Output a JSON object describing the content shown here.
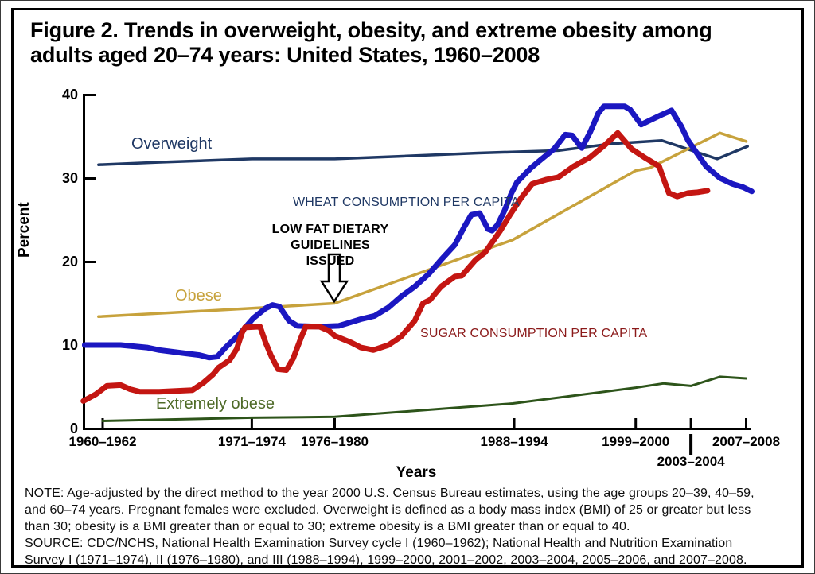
{
  "figure": {
    "title_line1": "Figure 2. Trends in overweight, obesity, and extreme obesity among",
    "title_line2": "adults aged 20–74 years: United States, 1960–2008"
  },
  "chart_data": {
    "type": "line",
    "title": "Figure 2. Trends in overweight, obesity, and extreme obesity among adults aged 20–74 years: United States, 1960–2008",
    "xlabel": "Years",
    "ylabel": "Percent",
    "ylim": [
      0,
      40
    ],
    "grid": false,
    "legend_position": "labels-on-lines",
    "y_ticks": [
      0,
      10,
      20,
      30,
      40
    ],
    "x_ticks": [
      {
        "label": "1960–1962",
        "year": 1961.0,
        "row": 1
      },
      {
        "label": "1971–1974",
        "year": 1971.8,
        "row": 1
      },
      {
        "label": "1976–1980",
        "year": 1977.8,
        "row": 1
      },
      {
        "label": "1988–1994",
        "year": 1990.8,
        "row": 1
      },
      {
        "label": "1999–2000",
        "year": 1999.6,
        "row": 1
      },
      {
        "label": "2003–2004",
        "year": 2003.6,
        "row": 2
      },
      {
        "label": "2007–2008",
        "year": 2007.6,
        "row": 1
      }
    ],
    "series": [
      {
        "name": "Overweight",
        "color": "#1f3864",
        "thick": false,
        "points": [
          [
            1960.7,
            31.6
          ],
          [
            1965.0,
            31.9
          ],
          [
            1971.8,
            32.3
          ],
          [
            1977.8,
            32.3
          ],
          [
            1982.4,
            32.6
          ],
          [
            1988.2,
            33.0
          ],
          [
            1994.0,
            33.3
          ],
          [
            1997.8,
            34.1
          ],
          [
            2001.5,
            34.5
          ],
          [
            2005.5,
            32.3
          ],
          [
            2007.7,
            33.8
          ]
        ]
      },
      {
        "name": "Obese",
        "color": "#c7a23c",
        "thick": false,
        "points": [
          [
            1960.7,
            13.4
          ],
          [
            1971.8,
            14.4
          ],
          [
            1977.8,
            15.0
          ],
          [
            1990.7,
            22.6
          ],
          [
            1999.6,
            30.9
          ],
          [
            2000.6,
            31.2
          ],
          [
            2005.7,
            35.4
          ],
          [
            2007.6,
            34.4
          ]
        ]
      },
      {
        "name": "Extremely obese",
        "color": "#2d541a",
        "thick": false,
        "points": [
          [
            1961.0,
            0.9
          ],
          [
            1971.8,
            1.3
          ],
          [
            1977.8,
            1.4
          ],
          [
            1990.7,
            3.0
          ],
          [
            1999.6,
            4.9
          ],
          [
            2001.6,
            5.4
          ],
          [
            2003.6,
            5.1
          ],
          [
            2005.7,
            6.2
          ],
          [
            2007.6,
            6.0
          ]
        ]
      },
      {
        "name": "Wheat consumption per capita",
        "color": "#1b17c1",
        "thick": true,
        "points": [
          [
            1959.7,
            10.0
          ],
          [
            1962.3,
            10.0
          ],
          [
            1964.2,
            9.7
          ],
          [
            1965.1,
            9.4
          ],
          [
            1967.0,
            9.0
          ],
          [
            1968.0,
            8.8
          ],
          [
            1968.7,
            8.5
          ],
          [
            1969.3,
            8.6
          ],
          [
            1969.9,
            9.7
          ],
          [
            1970.9,
            11.3
          ],
          [
            1971.9,
            13.2
          ],
          [
            1972.8,
            14.4
          ],
          [
            1973.3,
            14.8
          ],
          [
            1973.8,
            14.6
          ],
          [
            1974.5,
            12.9
          ],
          [
            1975.1,
            12.3
          ],
          [
            1976.7,
            12.2
          ],
          [
            1978.1,
            12.3
          ],
          [
            1979.7,
            13.1
          ],
          [
            1980.7,
            13.5
          ],
          [
            1981.7,
            14.5
          ],
          [
            1982.6,
            15.8
          ],
          [
            1983.6,
            17.0
          ],
          [
            1984.6,
            18.5
          ],
          [
            1985.5,
            20.2
          ],
          [
            1986.5,
            22.0
          ],
          [
            1987.2,
            24.2
          ],
          [
            1987.7,
            25.6
          ],
          [
            1988.3,
            25.8
          ],
          [
            1988.9,
            23.9
          ],
          [
            1989.2,
            23.7
          ],
          [
            1989.6,
            24.4
          ],
          [
            1990.1,
            26.1
          ],
          [
            1990.6,
            28.2
          ],
          [
            1991.0,
            29.5
          ],
          [
            1992.0,
            31.2
          ],
          [
            1992.8,
            32.3
          ],
          [
            1993.7,
            33.5
          ],
          [
            1994.5,
            35.2
          ],
          [
            1995.0,
            35.1
          ],
          [
            1995.7,
            33.6
          ],
          [
            1996.3,
            35.5
          ],
          [
            1996.9,
            37.8
          ],
          [
            1997.3,
            38.6
          ],
          [
            1998.8,
            38.6
          ],
          [
            1999.2,
            38.2
          ],
          [
            2000.0,
            36.4
          ],
          [
            2000.6,
            36.9
          ],
          [
            2001.5,
            37.6
          ],
          [
            2002.2,
            38.1
          ],
          [
            2002.9,
            36.2
          ],
          [
            2003.4,
            34.5
          ],
          [
            2003.9,
            33.3
          ],
          [
            2004.7,
            31.4
          ],
          [
            2005.7,
            30.0
          ],
          [
            2006.6,
            29.3
          ],
          [
            2007.4,
            28.9
          ],
          [
            2008.0,
            28.4
          ]
        ]
      },
      {
        "name": "Sugar consumption per capita",
        "color": "#c41612",
        "thick": true,
        "points": [
          [
            1959.6,
            3.3
          ],
          [
            1960.5,
            4.1
          ],
          [
            1961.3,
            5.1
          ],
          [
            1962.3,
            5.2
          ],
          [
            1963.0,
            4.7
          ],
          [
            1963.7,
            4.4
          ],
          [
            1965.1,
            4.4
          ],
          [
            1967.5,
            4.6
          ],
          [
            1968.3,
            5.5
          ],
          [
            1969.0,
            6.5
          ],
          [
            1969.4,
            7.3
          ],
          [
            1970.2,
            8.2
          ],
          [
            1970.7,
            9.5
          ],
          [
            1971.1,
            11.5
          ],
          [
            1971.3,
            12.1
          ],
          [
            1972.4,
            12.2
          ],
          [
            1972.8,
            10.3
          ],
          [
            1973.2,
            8.7
          ],
          [
            1973.7,
            7.1
          ],
          [
            1974.3,
            7.0
          ],
          [
            1974.8,
            8.4
          ],
          [
            1975.4,
            11.0
          ],
          [
            1975.7,
            12.2
          ],
          [
            1976.7,
            12.2
          ],
          [
            1977.4,
            11.7
          ],
          [
            1977.8,
            11.1
          ],
          [
            1979.0,
            10.3
          ],
          [
            1979.7,
            9.7
          ],
          [
            1980.6,
            9.4
          ],
          [
            1981.7,
            10.0
          ],
          [
            1982.6,
            11.0
          ],
          [
            1983.6,
            12.9
          ],
          [
            1984.2,
            15.0
          ],
          [
            1984.7,
            15.4
          ],
          [
            1985.5,
            17.0
          ],
          [
            1986.5,
            18.2
          ],
          [
            1987.0,
            18.3
          ],
          [
            1988.0,
            20.2
          ],
          [
            1988.7,
            21.1
          ],
          [
            1989.8,
            23.7
          ],
          [
            1990.5,
            25.6
          ],
          [
            1991.3,
            27.6
          ],
          [
            1992.1,
            29.3
          ],
          [
            1993.1,
            29.8
          ],
          [
            1994.0,
            30.1
          ],
          [
            1995.1,
            31.4
          ],
          [
            1996.3,
            32.5
          ],
          [
            1997.4,
            34.0
          ],
          [
            1998.3,
            35.4
          ],
          [
            1999.3,
            33.5
          ],
          [
            2000.3,
            32.4
          ],
          [
            2001.3,
            31.4
          ],
          [
            2001.6,
            30.0
          ],
          [
            2002.0,
            28.2
          ],
          [
            2002.6,
            27.8
          ],
          [
            2003.4,
            28.2
          ],
          [
            2004.1,
            28.3
          ],
          [
            2004.8,
            28.5
          ]
        ]
      }
    ],
    "annotations": {
      "wheat_label": "WHEAT CONSUMPTION PER CAPITA",
      "low_fat_line1": "LOW FAT DIETARY",
      "low_fat_line2": "GUIDELINES ISSUED",
      "sugar_label": "SUGAR CONSUMPTION PER CAPITA",
      "arrow": {
        "type": "down-arrow",
        "points_at": "1976–1980 kink of Obese line"
      }
    }
  },
  "series_labels": {
    "overweight": "Overweight",
    "obese": "Obese",
    "extremely_obese": "Extremely obese"
  },
  "axis": {
    "ylabel": "Percent",
    "xlabel": "Years"
  },
  "notes": {
    "note_lines": [
      "NOTE: Age-adjusted by the direct method to the year 2000 U.S. Census Bureau estimates, using the age groups 20–39, 40–59,",
      "and 60–74 years. Pregnant females were excluded. Overweight is defined as a body mass index (BMI) of 25 or greater but less",
      "than 30; obesity is a BMI greater than or equal to 30; extreme obesity is a BMI greater than or equal to 40."
    ],
    "source_lines": [
      "SOURCE: CDC/NCHS, National Health Examination Survey cycle I (1960–1962); National Health and Nutrition Examination",
      "Survey I (1971–1974), II (1976–1980), and III (1988–1994), 1999–2000, 2001–2002, 2003–2004, 2005–2006, and 2007–2008."
    ]
  },
  "colors": {
    "overweight": "#1f3864",
    "obese": "#c7a23c",
    "extremely_obese": "#2d541a",
    "wheat": "#1b17c1",
    "sugar": "#c41612",
    "border": "#000000"
  }
}
